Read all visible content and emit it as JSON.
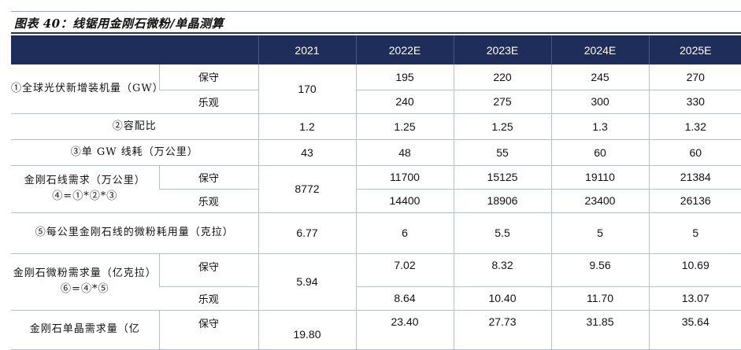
{
  "figure_title": "图表 40：线锯用金刚石微粉/单晶测算",
  "columns": [
    "",
    "2021",
    "2022E",
    "2023E",
    "2024E",
    "2025E"
  ],
  "rows": {
    "r1": {
      "label": "①全球光伏新增装机量（GW）",
      "s1": "保守",
      "s2": "乐观",
      "v2021": "170",
      "a": [
        "195",
        "220",
        "245",
        "270"
      ],
      "b": [
        "240",
        "275",
        "300",
        "330"
      ]
    },
    "r2": {
      "label": "②容配比",
      "v": [
        "1.2",
        "1.25",
        "1.25",
        "1.3",
        "1.32"
      ]
    },
    "r3": {
      "label": "③单 GW 线耗（万公里）",
      "v": [
        "43",
        "48",
        "55",
        "60",
        "60"
      ]
    },
    "r4": {
      "label": "金刚石线需求（万公里）④=①*②*③",
      "s1": "保守",
      "s2": "乐观",
      "v2021": "8772",
      "a": [
        "11700",
        "15125",
        "19110",
        "21384"
      ],
      "b": [
        "14400",
        "18906",
        "23400",
        "26136"
      ]
    },
    "r5": {
      "label": "⑤每公里金刚石线的微粉耗用量（克拉）",
      "v": [
        "6.77",
        "6",
        "5.5",
        "5",
        "5"
      ]
    },
    "r6": {
      "label": "金刚石微粉需求量（亿克拉）⑥=④*⑤",
      "s1": "保守",
      "s2": "乐观",
      "v2021": "5.94",
      "a": [
        "7.02",
        "8.32",
        "9.56",
        "10.69"
      ],
      "b": [
        "8.64",
        "10.40",
        "11.70",
        "13.07"
      ]
    },
    "r7": {
      "label": "金刚石单晶需求量（亿",
      "s1": "保守",
      "v2021": "19.80",
      "a": [
        "23.40",
        "27.73",
        "31.85",
        "35.64"
      ]
    }
  }
}
